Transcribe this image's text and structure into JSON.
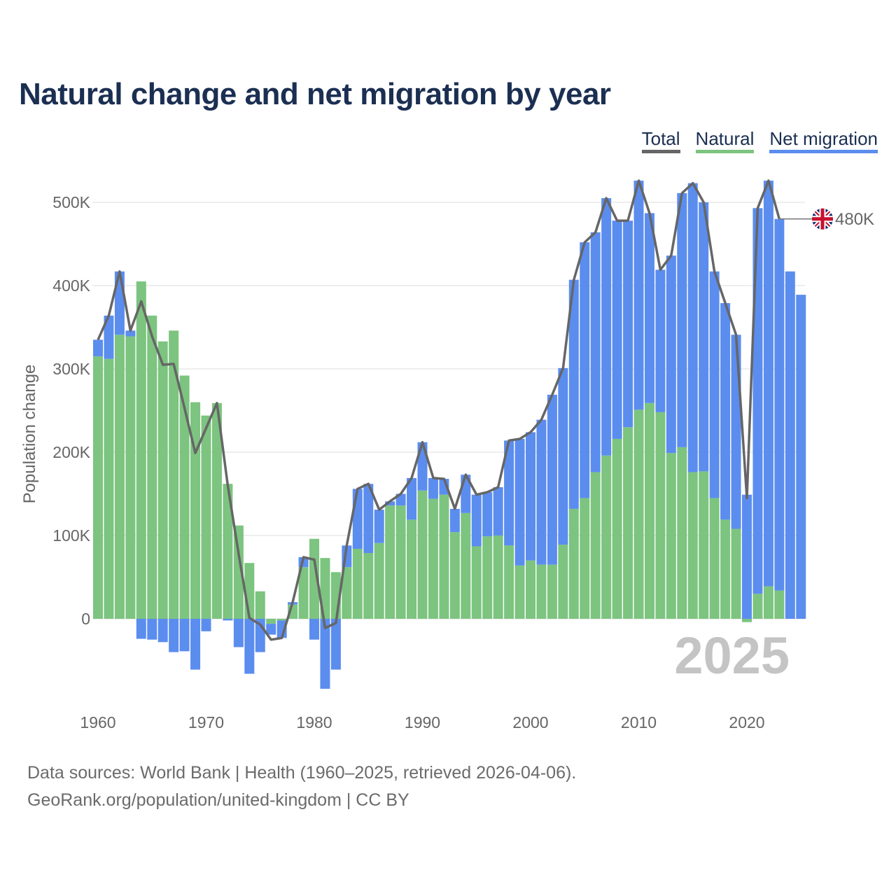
{
  "chart_data": {
    "type": "bar",
    "title": "Natural change and net migration by year",
    "ylabel": "Population change",
    "xlabel": "",
    "ylim": [
      -100000,
      550000
    ],
    "y_ticks": [
      0,
      100000,
      200000,
      300000,
      400000,
      500000
    ],
    "y_tick_labels": [
      "0",
      "100K",
      "200K",
      "300K",
      "400K",
      "500K"
    ],
    "x_ticks": [
      1960,
      1970,
      1980,
      1990,
      2000,
      2010,
      2020
    ],
    "x_tick_labels": [
      "1960",
      "1970",
      "1980",
      "1990",
      "2000",
      "2010",
      "2020"
    ],
    "legend": [
      {
        "name": "Total",
        "color": "#666666"
      },
      {
        "name": "Natural",
        "color": "#7cc47f"
      },
      {
        "name": "Net migration",
        "color": "#5b8def"
      }
    ],
    "years": [
      1960,
      1961,
      1962,
      1963,
      1964,
      1965,
      1966,
      1967,
      1968,
      1969,
      1970,
      1971,
      1972,
      1973,
      1974,
      1975,
      1976,
      1977,
      1978,
      1979,
      1980,
      1981,
      1982,
      1983,
      1984,
      1985,
      1986,
      1987,
      1988,
      1989,
      1990,
      1991,
      1992,
      1993,
      1994,
      1995,
      1996,
      1997,
      1998,
      1999,
      2000,
      2001,
      2002,
      2003,
      2004,
      2005,
      2006,
      2007,
      2008,
      2009,
      2010,
      2011,
      2012,
      2013,
      2014,
      2015,
      2016,
      2017,
      2018,
      2019,
      2020,
      2021,
      2022,
      2023,
      2024,
      2025
    ],
    "series": [
      {
        "name": "Natural",
        "values": [
          315000,
          312000,
          341000,
          339000,
          405000,
          364000,
          333000,
          346000,
          292000,
          260000,
          244000,
          259000,
          162000,
          112000,
          67000,
          33000,
          -6000,
          -2000,
          17000,
          62000,
          96000,
          73000,
          56000,
          62000,
          84000,
          79000,
          91000,
          136000,
          136000,
          119000,
          154000,
          144000,
          149000,
          104000,
          127000,
          87000,
          99000,
          100000,
          88000,
          64000,
          70000,
          65000,
          65000,
          89000,
          132000,
          145000,
          176000,
          196000,
          216000,
          230000,
          251000,
          259000,
          248000,
          199000,
          206000,
          176000,
          177000,
          145000,
          119000,
          108000,
          -4000,
          30000,
          39000,
          34000,
          null,
          null
        ]
      },
      {
        "name": "Net migration",
        "values": [
          20000,
          52000,
          76000,
          7000,
          -24000,
          -25000,
          -28000,
          -40000,
          -39000,
          -61000,
          -15000,
          0,
          -2000,
          -34000,
          -66000,
          -40000,
          -13000,
          -21000,
          3000,
          12000,
          -25000,
          -84000,
          -61000,
          26000,
          72000,
          83000,
          40000,
          5000,
          14000,
          50000,
          58000,
          25000,
          19000,
          28000,
          46000,
          62000,
          53000,
          58000,
          126000,
          152000,
          154000,
          174000,
          204000,
          212000,
          275000,
          307000,
          288000,
          309000,
          262000,
          248000,
          275000,
          228000,
          171000,
          237000,
          305000,
          347000,
          323000,
          272000,
          260000,
          233000,
          149000,
          463000,
          487000,
          446000,
          417000,
          389000
        ]
      },
      {
        "name": "Total",
        "values": [
          335000,
          364000,
          417000,
          346000,
          381000,
          339000,
          305000,
          306000,
          253000,
          199000,
          229000,
          259000,
          160000,
          78000,
          1000,
          -7000,
          -25000,
          -23000,
          20000,
          74000,
          71000,
          -11000,
          -5000,
          88000,
          156000,
          162000,
          131000,
          141000,
          150000,
          169000,
          212000,
          169000,
          168000,
          132000,
          173000,
          149000,
          152000,
          158000,
          214000,
          216000,
          224000,
          239000,
          269000,
          301000,
          407000,
          452000,
          464000,
          505000,
          478000,
          478000,
          526000,
          487000,
          419000,
          436000,
          511000,
          523000,
          500000,
          417000,
          379000,
          341000,
          145000,
          493000,
          526000,
          480000,
          null,
          null
        ]
      }
    ],
    "end_label": "480K",
    "year_label": "2025"
  },
  "footer": {
    "sources": "Data sources: World Bank | Health (1960–2025, retrieved 2026-04-06).",
    "credit": "GeoRank.org/population/united-kingdom | CC BY"
  },
  "colors": {
    "natural": "#7cc47f",
    "migration": "#5b8def",
    "total": "#666666",
    "title": "#1b2f52"
  },
  "icons": {
    "flag": "uk-flag-icon"
  }
}
